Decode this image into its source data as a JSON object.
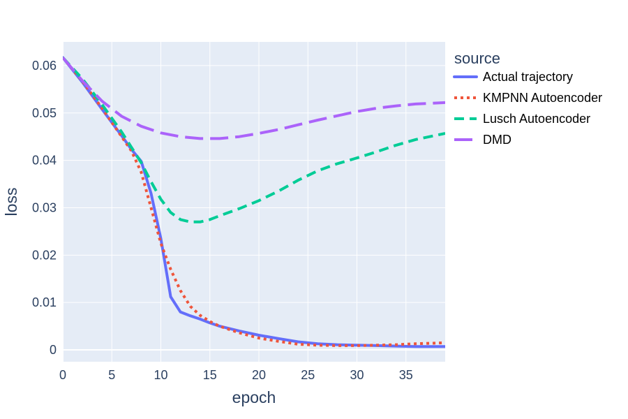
{
  "chart_data": {
    "type": "line",
    "title": "",
    "xlabel": "epoch",
    "ylabel": "loss",
    "xlim": [
      0,
      39
    ],
    "ylim": [
      -0.0025,
      0.065
    ],
    "xticks": [
      0,
      5,
      10,
      15,
      20,
      25,
      30,
      35
    ],
    "yticks": [
      0,
      0.01,
      0.02,
      0.03,
      0.04,
      0.05,
      0.06
    ],
    "ytick_labels": [
      "0",
      "0.01",
      "0.02",
      "0.03",
      "0.04",
      "0.05",
      "0.06"
    ],
    "grid": true,
    "legend": {
      "title": "source",
      "placement": "right"
    },
    "series": [
      {
        "name": "Actual trajectory",
        "color": "#636efa",
        "dash": "solid",
        "x": [
          0,
          2,
          4,
          6,
          7,
          8,
          9,
          10,
          11,
          12,
          13,
          14,
          15,
          16,
          18,
          20,
          22,
          24,
          26,
          28,
          30,
          32,
          34,
          36,
          39
        ],
        "y": [
          0.0617,
          0.0565,
          0.0508,
          0.0452,
          0.0423,
          0.0398,
          0.033,
          0.0235,
          0.0112,
          0.008,
          0.0072,
          0.0065,
          0.0057,
          0.005,
          0.004,
          0.0031,
          0.0024,
          0.0017,
          0.0013,
          0.0011,
          0.001,
          0.0009,
          0.0008,
          0.0007,
          0.0007
        ]
      },
      {
        "name": "KMPNN Autoencoder",
        "color": "#ef553b",
        "dash": "dot",
        "x": [
          0,
          2,
          4,
          6,
          7,
          8,
          9,
          10,
          11,
          12,
          13,
          14,
          15,
          16,
          18,
          20,
          22,
          24,
          26,
          28,
          30,
          32,
          34,
          36,
          39
        ],
        "y": [
          0.0617,
          0.0567,
          0.051,
          0.045,
          0.042,
          0.0375,
          0.03,
          0.0225,
          0.017,
          0.0125,
          0.0092,
          0.0073,
          0.006,
          0.005,
          0.0036,
          0.0025,
          0.0018,
          0.0012,
          0.001,
          0.0009,
          0.0009,
          0.001,
          0.0011,
          0.0013,
          0.0015
        ]
      },
      {
        "name": "Lusch Autoencoder",
        "color": "#00cc96",
        "dash": "dash",
        "x": [
          0,
          2,
          4,
          6,
          8,
          9,
          10,
          11,
          12,
          13,
          14,
          15,
          16,
          18,
          20,
          22,
          24,
          26,
          28,
          30,
          32,
          34,
          36,
          39
        ],
        "y": [
          0.0617,
          0.0572,
          0.0518,
          0.046,
          0.0395,
          0.0355,
          0.0318,
          0.029,
          0.0275,
          0.027,
          0.027,
          0.0275,
          0.0283,
          0.0298,
          0.0315,
          0.0335,
          0.0358,
          0.0378,
          0.0393,
          0.0405,
          0.0418,
          0.0432,
          0.0444,
          0.0457
        ]
      },
      {
        "name": "DMD",
        "color": "#ab63fa",
        "dash": "longdash",
        "x": [
          0,
          2,
          4,
          6,
          8,
          10,
          12,
          14,
          16,
          18,
          20,
          22,
          24,
          26,
          28,
          30,
          32,
          34,
          36,
          39
        ],
        "y": [
          0.0617,
          0.0568,
          0.0525,
          0.0493,
          0.0472,
          0.0458,
          0.045,
          0.0446,
          0.0446,
          0.045,
          0.0457,
          0.0465,
          0.0475,
          0.0485,
          0.0494,
          0.0503,
          0.051,
          0.0515,
          0.0519,
          0.0522
        ]
      }
    ]
  }
}
